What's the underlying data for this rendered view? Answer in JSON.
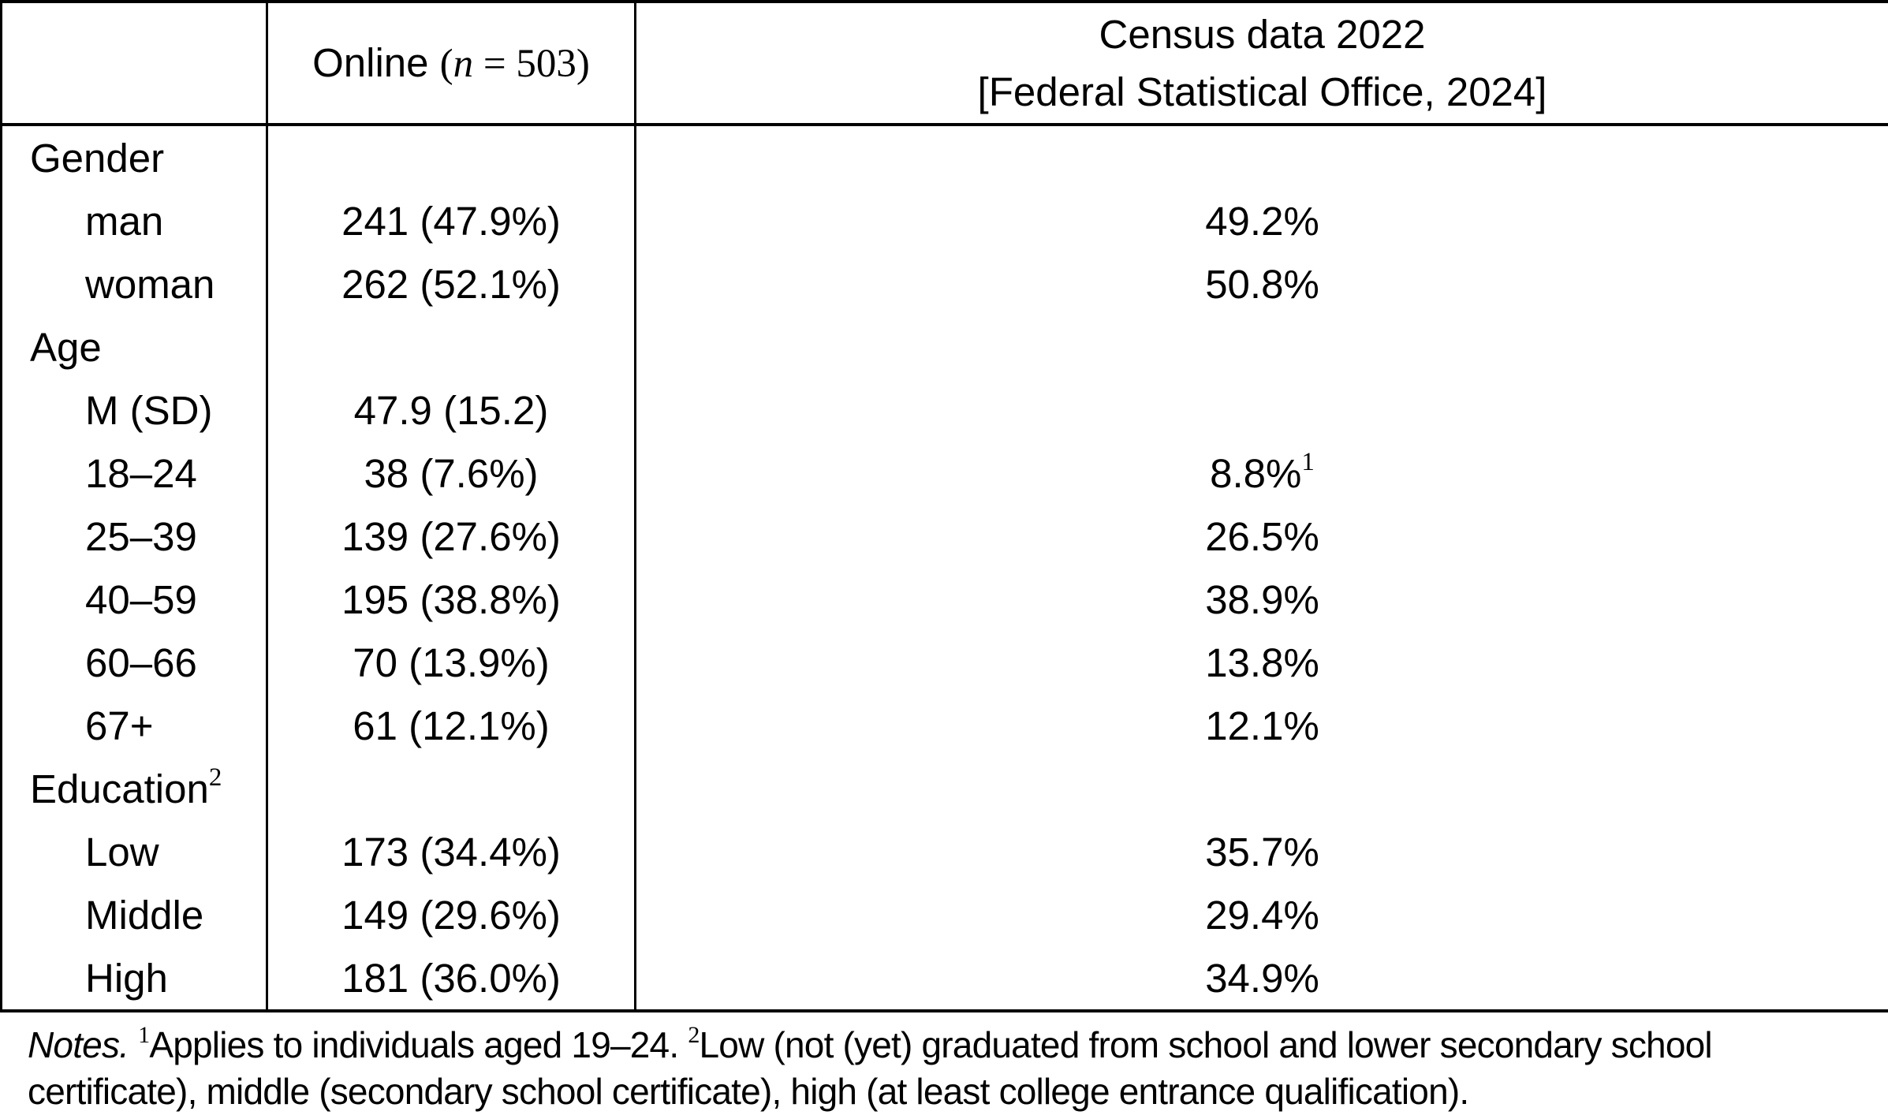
{
  "colors": {
    "background": "#ffffff",
    "text": "#000000",
    "border": "#000000"
  },
  "table": {
    "header": {
      "online_label": "Online ",
      "online_open": "(",
      "online_var": "n",
      "online_close": " = 503)",
      "census_line1": "Census data 2022",
      "census_line2": "[Federal Statistical Office, 2024]"
    },
    "rows": [
      {
        "label": "Gender",
        "online": "",
        "census": ""
      },
      {
        "label": "man",
        "online": "241 (47.9%)",
        "census": "49.2%"
      },
      {
        "label": "woman",
        "online": "262 (52.1%)",
        "census": "50.8%"
      },
      {
        "label": "Age",
        "online": "",
        "census": ""
      },
      {
        "label": "M (SD)",
        "online": "47.9 (15.2)",
        "census": ""
      },
      {
        "label": "18–24",
        "online": "38 (7.6%)",
        "census": "8.8%",
        "census_sup": "1"
      },
      {
        "label": "25–39",
        "online": "139 (27.6%)",
        "census": "26.5%"
      },
      {
        "label": "40–59",
        "online": "195 (38.8%)",
        "census": "38.9%"
      },
      {
        "label": "60–66",
        "online": "70 (13.9%)",
        "census": "13.8%"
      },
      {
        "label": "67+",
        "online": "61 (12.1%)",
        "census": "12.1%"
      },
      {
        "label": "Education",
        "label_sup": "2",
        "online": "",
        "census": ""
      },
      {
        "label": "Low",
        "online": "173 (34.4%)",
        "census": "35.7%"
      },
      {
        "label": "Middle",
        "online": "149 (29.6%)",
        "census": "29.4%"
      },
      {
        "label": "High",
        "online": "181 (36.0%)",
        "census": "34.9%"
      }
    ]
  },
  "notes": {
    "label": "Notes. ",
    "sup1": "1",
    "part1": "Applies to individuals aged 19–24. ",
    "sup2": "2",
    "part2": "Low (not (yet) graduated from school and lower secondary school certificate), middle (secondary school certificate), high (at least college entrance qualification)."
  }
}
